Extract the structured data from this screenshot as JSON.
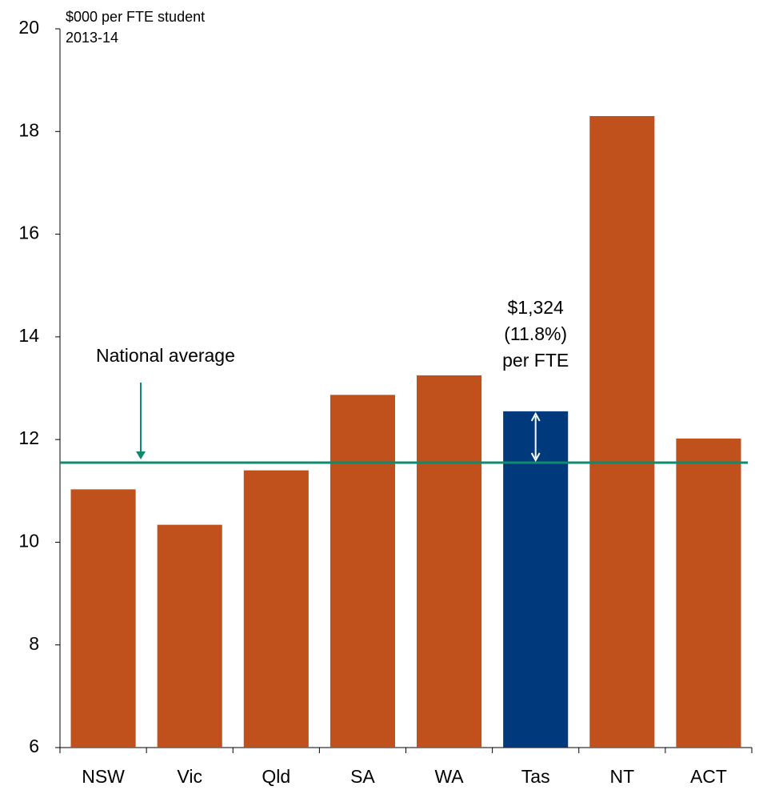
{
  "chart_data": {
    "type": "bar",
    "y_label": "$000 per FTE student",
    "subtitle": "2013-14",
    "categories": [
      "NSW",
      "Vic",
      "Qld",
      "SA",
      "WA",
      "Tas",
      "NT",
      "ACT"
    ],
    "values": [
      11.03,
      10.34,
      11.4,
      12.87,
      13.25,
      12.55,
      18.3,
      12.02
    ],
    "colors": [
      "#c0501c",
      "#c0501c",
      "#c0501c",
      "#c0501c",
      "#c0501c",
      "#003a7d",
      "#c0501c",
      "#c0501c"
    ],
    "ylim": [
      6,
      20
    ],
    "yticks": [
      6,
      8,
      10,
      12,
      14,
      16,
      18,
      20
    ],
    "reference_line": {
      "label": "National average",
      "value": 11.55,
      "color": "#0f8a6d"
    },
    "annotation": {
      "lines": [
        "$1,324",
        "(11.8%)",
        "per FTE"
      ],
      "color": "#003a7d"
    }
  }
}
